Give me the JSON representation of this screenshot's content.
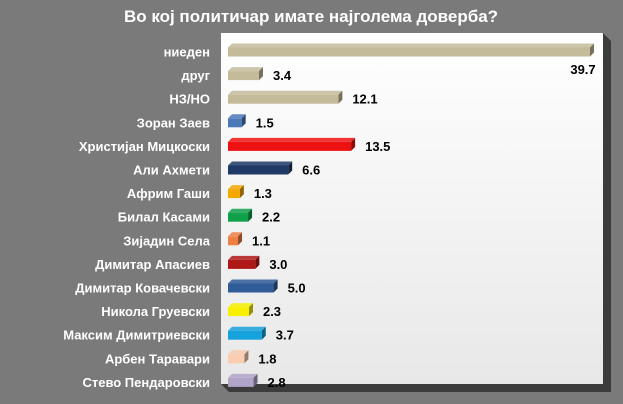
{
  "chart_data": {
    "type": "bar",
    "orientation": "horizontal",
    "title": "Во кој политичар имате најголема доверба?",
    "categories": [
      "ниеден",
      "друг",
      "НЗ/НО",
      "Зоран Заев",
      "Христијан Мицкоски",
      "Али Ахмети",
      "Африм Гаши",
      "Билал Касами",
      "Зијадин Села",
      "Димитар Апасиев",
      "Димитар Ковачевски",
      "Никола Груевски",
      "Максим Димитриевски",
      "Арбен Таравари",
      "Стево Пендаровски"
    ],
    "values": [
      39.7,
      3.4,
      12.1,
      1.5,
      13.5,
      6.6,
      1.3,
      2.2,
      1.1,
      3.0,
      5.0,
      2.3,
      3.7,
      1.8,
      2.8
    ],
    "value_labels": [
      "39.7",
      "3.4",
      "12.1",
      "1.5",
      "13.5",
      "6.6",
      "1.3",
      "2.2",
      "1.1",
      "3.0",
      "5.0",
      "2.3",
      "3.7",
      "1.8",
      "2.8"
    ],
    "colors": [
      "#c4bb9a",
      "#c4bb9a",
      "#c4bb9a",
      "#4a78b8",
      "#ee1111",
      "#1f3a66",
      "#f5a800",
      "#0fa04a",
      "#ee8044",
      "#b01818",
      "#2f5b96",
      "#f6f000",
      "#16a2dc",
      "#f8cdb0",
      "#b2a3c9"
    ],
    "xlim": [
      0,
      42
    ],
    "grid": false,
    "legend": "none"
  }
}
